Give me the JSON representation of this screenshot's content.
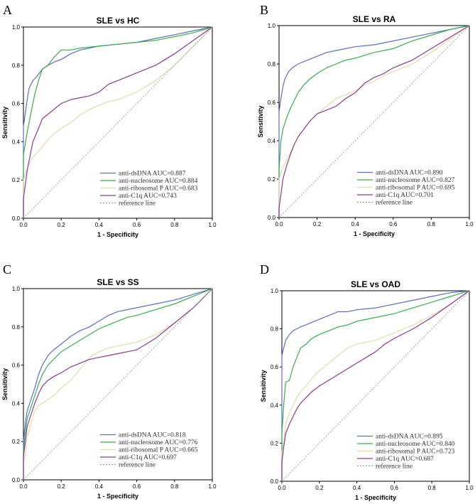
{
  "chart_data": [
    {
      "type": "line",
      "panel": "A",
      "title": "SLE vs HC",
      "xlabel": "1 - Specificity",
      "ylabel": "Sensitivity",
      "xlim": [
        0,
        1
      ],
      "ylim": [
        0,
        1
      ],
      "ticks": [
        "0.0",
        "0.2",
        "0.4",
        "0.6",
        "0.8",
        "1.0"
      ],
      "series": [
        {
          "name": "anti-dsDNA",
          "label": "anti-dsDNA AUC=0.887",
          "color": "#5b6fc0",
          "x": [
            0,
            0,
            0.01,
            0.02,
            0.03,
            0.05,
            0.07,
            0.1,
            0.13,
            0.17,
            0.2,
            0.25,
            0.3,
            0.35,
            0.4,
            0.5,
            0.6,
            0.7,
            0.8,
            0.9,
            1.0
          ],
          "y": [
            0,
            0.48,
            0.55,
            0.62,
            0.68,
            0.72,
            0.74,
            0.78,
            0.8,
            0.82,
            0.83,
            0.86,
            0.88,
            0.89,
            0.9,
            0.91,
            0.92,
            0.94,
            0.96,
            0.98,
            1.0
          ]
        },
        {
          "name": "anti-nucleosome",
          "label": "anti-nucleosome AUC=0.884",
          "color": "#3daa4f",
          "x": [
            0,
            0,
            0.02,
            0.04,
            0.06,
            0.08,
            0.1,
            0.13,
            0.16,
            0.2,
            0.25,
            0.3,
            0.4,
            0.5,
            0.6,
            0.7,
            0.8,
            0.9,
            1.0
          ],
          "y": [
            0,
            0.33,
            0.45,
            0.55,
            0.65,
            0.72,
            0.78,
            0.8,
            0.84,
            0.88,
            0.88,
            0.89,
            0.9,
            0.91,
            0.92,
            0.93,
            0.95,
            0.97,
            1.0
          ]
        },
        {
          "name": "anti-ribosomal P",
          "label": "anti-ribosomal P AUC=0.683",
          "color": "#e3dbaa",
          "x": [
            0,
            0,
            0.02,
            0.05,
            0.08,
            0.12,
            0.16,
            0.2,
            0.25,
            0.3,
            0.35,
            0.4,
            0.45,
            0.5,
            0.55,
            0.6,
            0.7,
            0.8,
            0.9,
            1.0
          ],
          "y": [
            0,
            0.2,
            0.26,
            0.32,
            0.35,
            0.4,
            0.44,
            0.47,
            0.5,
            0.54,
            0.57,
            0.59,
            0.61,
            0.62,
            0.64,
            0.66,
            0.72,
            0.8,
            0.9,
            1.0
          ]
        },
        {
          "name": "anti-C1q",
          "label": "anti-C1q AUC=0.743",
          "color": "#8b3a8f",
          "x": [
            0,
            0,
            0.02,
            0.05,
            0.08,
            0.1,
            0.15,
            0.2,
            0.25,
            0.3,
            0.35,
            0.4,
            0.45,
            0.5,
            0.6,
            0.7,
            0.8,
            0.9,
            1.0
          ],
          "y": [
            0,
            0.1,
            0.25,
            0.4,
            0.47,
            0.52,
            0.56,
            0.6,
            0.62,
            0.63,
            0.64,
            0.66,
            0.7,
            0.72,
            0.76,
            0.8,
            0.86,
            0.93,
            1.0
          ]
        },
        {
          "name": "reference line",
          "label": "reference line",
          "color": "#999999",
          "dashed": true,
          "x": [
            0,
            1
          ],
          "y": [
            0,
            1
          ]
        }
      ]
    },
    {
      "type": "line",
      "panel": "B",
      "title": "SLE vs RA",
      "xlabel": "1 - Specificity",
      "ylabel": "Sensitivity",
      "xlim": [
        0,
        1
      ],
      "ylim": [
        0,
        1
      ],
      "ticks": [
        "0.0",
        "0.2",
        "0.4",
        "0.6",
        "0.8",
        "1.0"
      ],
      "series": [
        {
          "name": "anti-dsDNA",
          "label": "anti-dsDNA AUC=0.890",
          "color": "#5b6fc0",
          "x": [
            0,
            0,
            0.01,
            0.02,
            0.03,
            0.05,
            0.07,
            0.1,
            0.15,
            0.2,
            0.25,
            0.3,
            0.35,
            0.4,
            0.5,
            0.6,
            0.7,
            0.8,
            0.9,
            1.0
          ],
          "y": [
            0,
            0.55,
            0.62,
            0.68,
            0.72,
            0.76,
            0.78,
            0.8,
            0.82,
            0.84,
            0.86,
            0.87,
            0.88,
            0.89,
            0.9,
            0.92,
            0.94,
            0.96,
            0.98,
            1.0
          ]
        },
        {
          "name": "anti-nucleosome",
          "label": "anti-nucleosome AUC=0.827",
          "color": "#3daa4f",
          "x": [
            0,
            0,
            0.01,
            0.02,
            0.04,
            0.06,
            0.08,
            0.1,
            0.13,
            0.16,
            0.2,
            0.25,
            0.3,
            0.35,
            0.4,
            0.5,
            0.6,
            0.7,
            0.8,
            0.9,
            1.0
          ],
          "y": [
            0,
            0.25,
            0.4,
            0.46,
            0.52,
            0.57,
            0.61,
            0.65,
            0.69,
            0.72,
            0.75,
            0.78,
            0.8,
            0.82,
            0.83,
            0.86,
            0.88,
            0.92,
            0.95,
            0.98,
            1.0
          ]
        },
        {
          "name": "anti-ribosomal P",
          "label": "anti-ribosomal P AUC=0.695",
          "color": "#e3dbaa",
          "x": [
            0,
            0,
            0.02,
            0.04,
            0.06,
            0.08,
            0.1,
            0.13,
            0.16,
            0.2,
            0.25,
            0.3,
            0.35,
            0.4,
            0.45,
            0.5,
            0.55,
            0.6,
            0.7,
            0.8,
            0.9,
            1.0
          ],
          "y": [
            0,
            0.2,
            0.26,
            0.3,
            0.34,
            0.38,
            0.42,
            0.46,
            0.5,
            0.54,
            0.58,
            0.62,
            0.64,
            0.66,
            0.69,
            0.71,
            0.74,
            0.76,
            0.8,
            0.86,
            0.93,
            1.0
          ]
        },
        {
          "name": "anti-C1q",
          "label": "anti-C1q AUC=0.701",
          "color": "#8b3a8f",
          "x": [
            0,
            0,
            0.01,
            0.02,
            0.04,
            0.06,
            0.08,
            0.1,
            0.13,
            0.16,
            0.2,
            0.25,
            0.3,
            0.35,
            0.4,
            0.45,
            0.5,
            0.55,
            0.6,
            0.7,
            0.8,
            0.9,
            1.0
          ],
          "y": [
            0,
            0.05,
            0.12,
            0.2,
            0.27,
            0.33,
            0.38,
            0.42,
            0.46,
            0.5,
            0.54,
            0.56,
            0.58,
            0.62,
            0.65,
            0.7,
            0.73,
            0.75,
            0.78,
            0.82,
            0.88,
            0.94,
            1.0
          ]
        },
        {
          "name": "reference line",
          "label": "reference line",
          "color": "#999999",
          "dashed": true,
          "x": [
            0,
            1
          ],
          "y": [
            0,
            1
          ]
        }
      ]
    },
    {
      "type": "line",
      "panel": "C",
      "title": "SLE vs SS",
      "xlabel": "1 - Specificity",
      "ylabel": "Sensitivity",
      "xlim": [
        0,
        1
      ],
      "ylim": [
        0,
        1
      ],
      "ticks": [
        "0.0",
        "0.2",
        "0.4",
        "0.6",
        "0.8",
        "1.0"
      ],
      "series": [
        {
          "name": "anti-dsDNA",
          "label": "anti-dsDNA AUC=0.818",
          "color": "#5b6fc0",
          "x": [
            0,
            0,
            0.01,
            0.02,
            0.04,
            0.06,
            0.08,
            0.1,
            0.13,
            0.16,
            0.2,
            0.25,
            0.3,
            0.35,
            0.4,
            0.45,
            0.5,
            0.55,
            0.6,
            0.7,
            0.8,
            0.9,
            1.0
          ],
          "y": [
            0,
            0.2,
            0.3,
            0.36,
            0.42,
            0.48,
            0.55,
            0.6,
            0.65,
            0.68,
            0.71,
            0.75,
            0.78,
            0.8,
            0.83,
            0.86,
            0.88,
            0.89,
            0.9,
            0.92,
            0.94,
            0.97,
            1.0
          ]
        },
        {
          "name": "anti-nucleosome",
          "label": "anti-nucleosome AUC=0.776",
          "color": "#3daa4f",
          "x": [
            0,
            0,
            0.01,
            0.02,
            0.04,
            0.06,
            0.08,
            0.1,
            0.13,
            0.16,
            0.2,
            0.25,
            0.3,
            0.35,
            0.4,
            0.45,
            0.5,
            0.55,
            0.6,
            0.7,
            0.8,
            0.9,
            1.0
          ],
          "y": [
            0,
            0.15,
            0.25,
            0.32,
            0.38,
            0.44,
            0.5,
            0.55,
            0.6,
            0.63,
            0.67,
            0.7,
            0.73,
            0.76,
            0.79,
            0.81,
            0.83,
            0.85,
            0.86,
            0.89,
            0.92,
            0.96,
            1.0
          ]
        },
        {
          "name": "anti-ribosomal P",
          "label": "anti-ribosomal P AUC=0.665",
          "color": "#e3dbaa",
          "x": [
            0,
            0,
            0.01,
            0.02,
            0.04,
            0.06,
            0.08,
            0.1,
            0.13,
            0.16,
            0.2,
            0.25,
            0.3,
            0.35,
            0.4,
            0.45,
            0.5,
            0.55,
            0.6,
            0.7,
            0.8,
            0.9,
            1.0
          ],
          "y": [
            0,
            0.08,
            0.14,
            0.22,
            0.3,
            0.36,
            0.39,
            0.4,
            0.42,
            0.44,
            0.48,
            0.52,
            0.58,
            0.64,
            0.67,
            0.69,
            0.7,
            0.71,
            0.72,
            0.76,
            0.82,
            0.9,
            1.0
          ]
        },
        {
          "name": "anti-C1q",
          "label": "anti-C1q AUC=0.697",
          "color": "#8b3a8f",
          "x": [
            0,
            0,
            0.01,
            0.02,
            0.04,
            0.06,
            0.08,
            0.1,
            0.13,
            0.16,
            0.2,
            0.25,
            0.3,
            0.35,
            0.4,
            0.45,
            0.5,
            0.55,
            0.6,
            0.7,
            0.8,
            0.9,
            1.0
          ],
          "y": [
            0,
            0.12,
            0.2,
            0.28,
            0.34,
            0.4,
            0.45,
            0.49,
            0.52,
            0.54,
            0.56,
            0.59,
            0.61,
            0.63,
            0.64,
            0.65,
            0.66,
            0.67,
            0.68,
            0.74,
            0.82,
            0.9,
            1.0
          ]
        },
        {
          "name": "reference line",
          "label": "reference line",
          "color": "#999999",
          "dashed": true,
          "x": [
            0,
            1
          ],
          "y": [
            0,
            1
          ]
        }
      ]
    },
    {
      "type": "line",
      "panel": "D",
      "title": "SLE vs OAD",
      "xlabel": "1 - Specificity",
      "ylabel": "Sensitivity",
      "xlim": [
        0,
        1
      ],
      "ylim": [
        0,
        1
      ],
      "ticks": [
        "0.0",
        "0.2",
        "0.4",
        "0.6",
        "0.8",
        "1.0"
      ],
      "series": [
        {
          "name": "anti-dsDNA",
          "label": "anti-dsDNA AUC=0.895",
          "color": "#5b6fc0",
          "x": [
            0,
            0,
            0.01,
            0.02,
            0.04,
            0.06,
            0.08,
            0.1,
            0.15,
            0.2,
            0.25,
            0.3,
            0.35,
            0.4,
            0.5,
            0.6,
            0.7,
            0.8,
            0.9,
            1.0
          ],
          "y": [
            0,
            0.66,
            0.7,
            0.74,
            0.77,
            0.79,
            0.8,
            0.81,
            0.83,
            0.85,
            0.87,
            0.89,
            0.89,
            0.9,
            0.91,
            0.93,
            0.95,
            0.97,
            0.99,
            1.0
          ]
        },
        {
          "name": "anti-nucleosome",
          "label": "anti-nucleosome AUC=0.840",
          "color": "#3daa4f",
          "x": [
            0,
            0,
            0.01,
            0.02,
            0.04,
            0.06,
            0.08,
            0.1,
            0.13,
            0.16,
            0.2,
            0.25,
            0.3,
            0.35,
            0.4,
            0.5,
            0.6,
            0.7,
            0.8,
            0.9,
            1.0
          ],
          "y": [
            0,
            0.25,
            0.4,
            0.52,
            0.53,
            0.6,
            0.65,
            0.7,
            0.72,
            0.75,
            0.77,
            0.79,
            0.81,
            0.82,
            0.84,
            0.86,
            0.88,
            0.91,
            0.94,
            0.97,
            1.0
          ]
        },
        {
          "name": "anti-ribosomal P",
          "label": "anti-ribosomal P AUC=0.723",
          "color": "#e3dbaa",
          "x": [
            0,
            0,
            0.01,
            0.02,
            0.04,
            0.06,
            0.08,
            0.1,
            0.13,
            0.16,
            0.2,
            0.25,
            0.3,
            0.35,
            0.4,
            0.45,
            0.5,
            0.55,
            0.6,
            0.7,
            0.8,
            0.9,
            1.0
          ],
          "y": [
            0,
            0.15,
            0.2,
            0.3,
            0.36,
            0.4,
            0.44,
            0.47,
            0.5,
            0.54,
            0.58,
            0.62,
            0.66,
            0.7,
            0.72,
            0.73,
            0.74,
            0.76,
            0.78,
            0.82,
            0.87,
            0.93,
            1.0
          ]
        },
        {
          "name": "anti-C1q",
          "label": "anti-C1q AUC=0.687",
          "color": "#8b3a8f",
          "x": [
            0,
            0,
            0.01,
            0.02,
            0.04,
            0.06,
            0.08,
            0.1,
            0.13,
            0.16,
            0.2,
            0.25,
            0.3,
            0.35,
            0.4,
            0.45,
            0.5,
            0.55,
            0.6,
            0.7,
            0.8,
            0.9,
            1.0
          ],
          "y": [
            0,
            0.1,
            0.18,
            0.25,
            0.3,
            0.34,
            0.38,
            0.41,
            0.44,
            0.47,
            0.5,
            0.53,
            0.56,
            0.59,
            0.62,
            0.65,
            0.68,
            0.72,
            0.75,
            0.8,
            0.86,
            0.93,
            1.0
          ]
        },
        {
          "name": "reference line",
          "label": "reference line",
          "color": "#999999",
          "dashed": true,
          "x": [
            0,
            1
          ],
          "y": [
            0,
            1
          ]
        }
      ]
    }
  ]
}
